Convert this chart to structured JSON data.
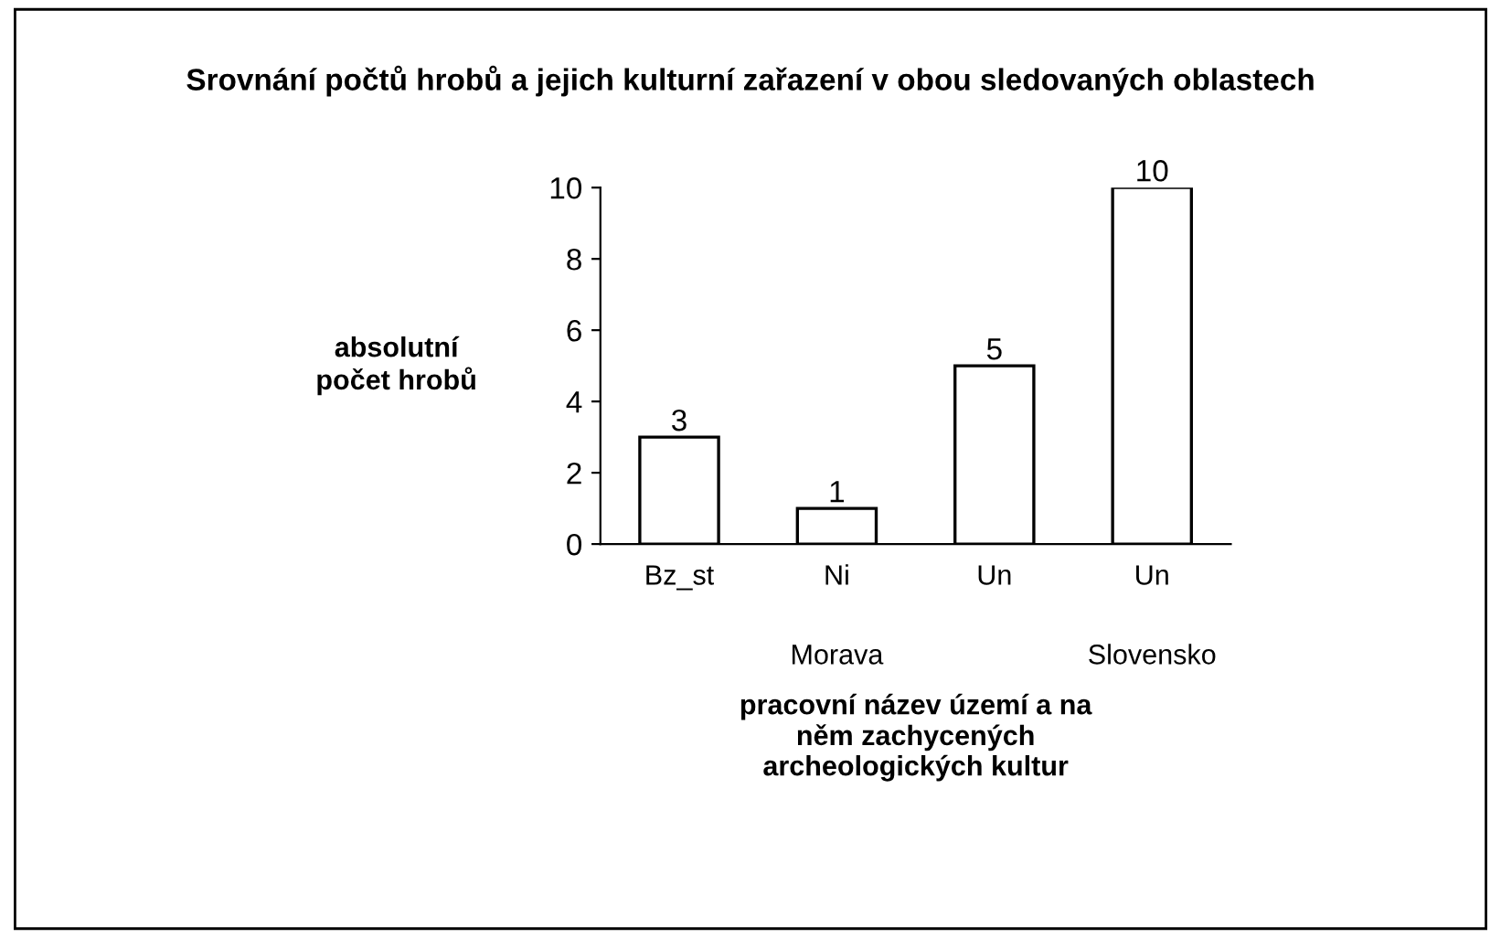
{
  "chart_data": {
    "type": "bar",
    "title": "Srovnání počtů hrobů a jejich kulturní zařazení v obou sledovaných oblastech",
    "xlabel": "pracovní název území a na\nněm zachycených\narcheologických kultur",
    "ylabel": "absolutní\npočet hrobů",
    "categories": [
      "Bz_st",
      "Ni",
      "Un",
      "Un"
    ],
    "values": [
      3,
      1,
      5,
      10
    ],
    "color": "#ffffff",
    "ylim": [
      0,
      10
    ],
    "yticks": [
      0,
      2,
      4,
      6,
      8,
      10
    ],
    "grid": false,
    "data_labels": true,
    "annotations": [
      "Morava",
      "Slovensko"
    ]
  }
}
